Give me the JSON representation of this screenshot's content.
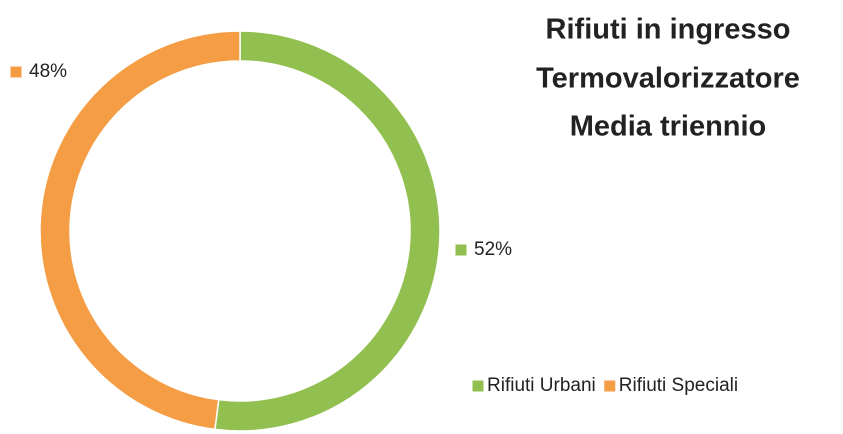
{
  "chart_data": {
    "type": "donut",
    "title": [
      "Rifiuti in ingresso",
      "Termovalorizzatore",
      "Media triennio"
    ],
    "categories": [
      "Rifiuti Urbani",
      "Rifiuti Speciali"
    ],
    "series": [
      {
        "values": [
          52,
          48
        ],
        "value_labels": [
          "52%",
          "48%"
        ],
        "colors": [
          "#92c050",
          "#f59d45"
        ]
      }
    ],
    "legend": "bottom-right"
  }
}
